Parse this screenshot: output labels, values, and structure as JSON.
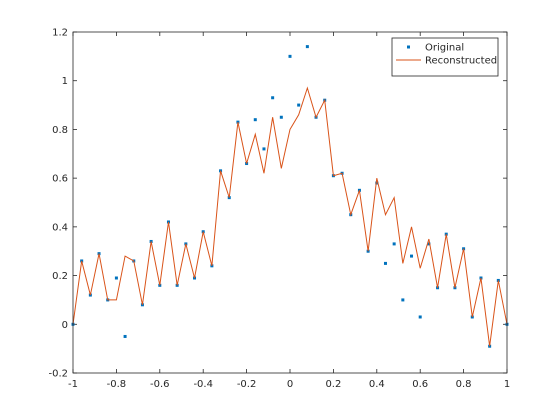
{
  "chart_data": {
    "type": "scatter_line",
    "x": [
      -1,
      -0.96,
      -0.92,
      -0.88,
      -0.84,
      -0.8,
      -0.76,
      -0.72,
      -0.68,
      -0.64,
      -0.6,
      -0.56,
      -0.52,
      -0.48,
      -0.44,
      -0.4,
      -0.36,
      -0.32,
      -0.28,
      -0.24,
      -0.2,
      -0.16,
      -0.12,
      -0.08,
      -0.04,
      0,
      0.04,
      0.08,
      0.12,
      0.16,
      0.2,
      0.24,
      0.28,
      0.32,
      0.36,
      0.4,
      0.44,
      0.48,
      0.52,
      0.56,
      0.6,
      0.64,
      0.68,
      0.72,
      0.76,
      0.8,
      0.84,
      0.88,
      0.92,
      0.96,
      1
    ],
    "series": [
      {
        "name": "Original",
        "color": "#0072bd",
        "marker": "dot",
        "values": [
          0,
          0.26,
          0.12,
          0.29,
          0.1,
          0.19,
          -0.05,
          0.26,
          0.08,
          0.34,
          0.16,
          0.42,
          0.16,
          0.33,
          0.19,
          0.38,
          0.24,
          0.63,
          0.52,
          0.83,
          0.66,
          0.84,
          0.72,
          0.93,
          0.85,
          1.1,
          0.9,
          1.14,
          0.85,
          0.92,
          0.61,
          0.62,
          0.45,
          0.55,
          0.3,
          0.58,
          0.25,
          0.33,
          0.1,
          0.28,
          0.03,
          0.33,
          0.15,
          0.37,
          0.15,
          0.31,
          0.03,
          0.19,
          -0.09,
          0.18,
          0
        ]
      },
      {
        "name": "Reconstructed",
        "color": "#d95319",
        "marker": "line",
        "values": [
          0,
          0.26,
          0.12,
          0.29,
          0.1,
          0.1,
          0.28,
          0.26,
          0.08,
          0.34,
          0.16,
          0.42,
          0.16,
          0.33,
          0.19,
          0.38,
          0.24,
          0.63,
          0.52,
          0.83,
          0.66,
          0.78,
          0.62,
          0.85,
          0.64,
          0.8,
          0.86,
          0.97,
          0.85,
          0.92,
          0.61,
          0.62,
          0.45,
          0.55,
          0.3,
          0.6,
          0.45,
          0.52,
          0.25,
          0.4,
          0.23,
          0.35,
          0.15,
          0.37,
          0.15,
          0.31,
          0.03,
          0.19,
          -0.09,
          0.18,
          0
        ]
      }
    ],
    "xlim": [
      -1,
      1
    ],
    "xticks": [
      -1,
      -0.8,
      -0.6,
      -0.4,
      -0.2,
      0,
      0.2,
      0.4,
      0.6,
      0.8,
      1
    ],
    "ylim": [
      -0.2,
      1.2
    ],
    "yticks": [
      -0.2,
      0,
      0.2,
      0.4,
      0.6,
      0.8,
      1,
      1.2
    ],
    "legend": "northeast"
  }
}
